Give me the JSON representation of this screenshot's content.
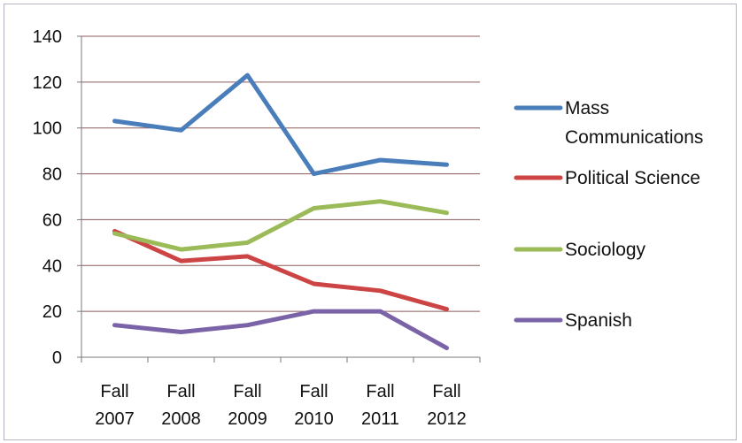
{
  "chart_data": {
    "type": "line",
    "title": "",
    "xlabel": "",
    "ylabel": "",
    "categories": [
      [
        "Fall",
        "2007"
      ],
      [
        "Fall",
        "2008"
      ],
      [
        "Fall",
        "2009"
      ],
      [
        "Fall",
        "2010"
      ],
      [
        "Fall",
        "2011"
      ],
      [
        "Fall",
        "2012"
      ]
    ],
    "ylim": [
      0,
      140
    ],
    "yticks": [
      0,
      20,
      40,
      60,
      80,
      100,
      120,
      140
    ],
    "grid": true,
    "legend_position": "right",
    "series": [
      {
        "name": [
          "Mass",
          "Communications"
        ],
        "color": "#4a7ebb",
        "values": [
          103,
          99,
          123,
          80,
          86,
          84
        ]
      },
      {
        "name": [
          "Political Science"
        ],
        "color": "#cc4444",
        "values": [
          55,
          42,
          44,
          32,
          29,
          21
        ]
      },
      {
        "name": [
          "Sociology"
        ],
        "color": "#9bbb59",
        "values": [
          54,
          47,
          50,
          65,
          68,
          63
        ]
      },
      {
        "name": [
          "Spanish"
        ],
        "color": "#7a63a6",
        "values": [
          14,
          11,
          14,
          20,
          20,
          4
        ]
      }
    ]
  },
  "colors": {
    "gridline": "#8c5a5a",
    "axis": "#7a7a7a"
  }
}
